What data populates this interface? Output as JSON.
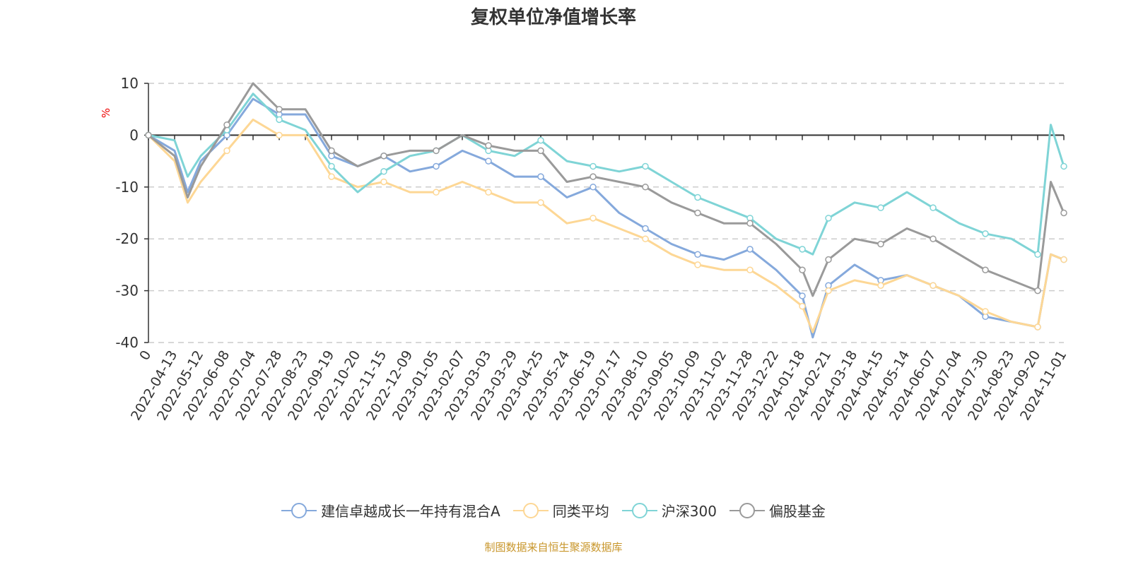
{
  "chart_data": {
    "type": "line",
    "title": "复权单位净值增长率",
    "ylabel": "%",
    "ylim": [
      -40,
      10
    ],
    "yticks": [
      10,
      0,
      -10,
      -20,
      -30,
      -40
    ],
    "grid": true,
    "legend_position": "bottom",
    "categories": [
      "0",
      "2022-04-13",
      "2022-05-12",
      "2022-06-08",
      "2022-07-04",
      "2022-07-28",
      "2022-08-23",
      "2022-09-19",
      "2022-10-20",
      "2022-11-15",
      "2022-12-09",
      "2023-01-05",
      "2023-02-07",
      "2023-03-03",
      "2023-03-29",
      "2023-04-25",
      "2023-05-24",
      "2023-06-19",
      "2023-07-17",
      "2023-08-10",
      "2023-09-05",
      "2023-10-09",
      "2023-11-02",
      "2023-11-28",
      "2023-12-22",
      "2024-01-18",
      "2024-02-21",
      "2024-03-18",
      "2024-04-15",
      "2024-05-14",
      "2024-06-07",
      "2024-07-04",
      "2024-07-30",
      "2024-08-23",
      "2024-09-20",
      "2024-11-01"
    ],
    "x": [
      0,
      1,
      1.5,
      2,
      3,
      4,
      5,
      6,
      7,
      8,
      9,
      10,
      11,
      12,
      13,
      14,
      15,
      16,
      17,
      18,
      19,
      20,
      21,
      22,
      23,
      24,
      25,
      25.4,
      26,
      27,
      28,
      29,
      30,
      31,
      32,
      33,
      34,
      34.5,
      35
    ],
    "series": [
      {
        "name": "建信卓越成长一年持有混合A",
        "color": "#85a9dc",
        "values": [
          0,
          -3,
          -11,
          -5,
          0,
          7,
          4,
          4,
          -4,
          -6,
          -4,
          -7,
          -6,
          -3,
          -5,
          -8,
          -8,
          -12,
          -10,
          -15,
          -18,
          -21,
          -23,
          -24,
          -22,
          -26,
          -31,
          -39,
          -29,
          -25,
          -28,
          -27,
          -29,
          -31,
          -35,
          -36,
          -37,
          -23,
          -24
        ]
      },
      {
        "name": "同类平均",
        "color": "#fdd795",
        "values": [
          0,
          -5,
          -13,
          -9,
          -3,
          3,
          0,
          0,
          -8,
          -10,
          -9,
          -11,
          -11,
          -9,
          -11,
          -13,
          -13,
          -17,
          -16,
          -18,
          -20,
          -23,
          -25,
          -26,
          -26,
          -29,
          -33,
          -38,
          -30,
          -28,
          -29,
          -27,
          -29,
          -31,
          -34,
          -36,
          -37,
          -23,
          -24
        ]
      },
      {
        "name": "沪深300",
        "color": "#7fd4d6",
        "values": [
          0,
          -1,
          -8,
          -4,
          1,
          8,
          3,
          1,
          -6,
          -11,
          -7,
          -4,
          -3,
          0,
          -3,
          -4,
          -1,
          -5,
          -6,
          -7,
          -6,
          -9,
          -12,
          -14,
          -16,
          -20,
          -22,
          -23,
          -16,
          -13,
          -14,
          -11,
          -14,
          -17,
          -19,
          -20,
          -23,
          2,
          -6
        ]
      },
      {
        "name": "偏股基金",
        "color": "#9a9a9a",
        "values": [
          0,
          -4,
          -12,
          -6,
          2,
          10,
          5,
          5,
          -3,
          -6,
          -4,
          -3,
          -3,
          0,
          -2,
          -3,
          -3,
          -9,
          -8,
          -9,
          -10,
          -13,
          -15,
          -17,
          -17,
          -21,
          -26,
          -31,
          -24,
          -20,
          -21,
          -18,
          -20,
          -23,
          -26,
          -28,
          -30,
          -9,
          -15
        ]
      }
    ]
  },
  "source": "制图数据来自恒生聚源数据库"
}
